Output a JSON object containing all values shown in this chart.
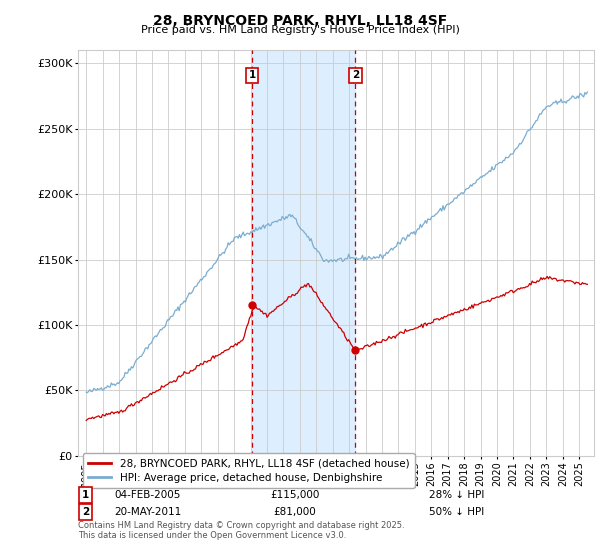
{
  "title": "28, BRYNCOED PARK, RHYL, LL18 4SF",
  "subtitle": "Price paid vs. HM Land Registry's House Price Index (HPI)",
  "line1_label": "28, BRYNCOED PARK, RHYL, LL18 4SF (detached house)",
  "line2_label": "HPI: Average price, detached house, Denbighshire",
  "line1_color": "#cc0000",
  "line2_color": "#7aadcf",
  "shade_color": "#ddeeff",
  "marker1_date": "04-FEB-2005",
  "marker1_price": "£115,000",
  "marker1_hpi": "28% ↓ HPI",
  "marker2_date": "20-MAY-2011",
  "marker2_price": "£81,000",
  "marker2_hpi": "50% ↓ HPI",
  "ymin": 0,
  "ymax": 310000,
  "footnote": "Contains HM Land Registry data © Crown copyright and database right 2025.\nThis data is licensed under the Open Government Licence v3.0.",
  "vline1_x": 2005.09,
  "vline2_x": 2011.38,
  "shade_x1": 2005.09,
  "shade_x2": 2011.38,
  "xmin": 1994.5,
  "xmax": 2025.9
}
